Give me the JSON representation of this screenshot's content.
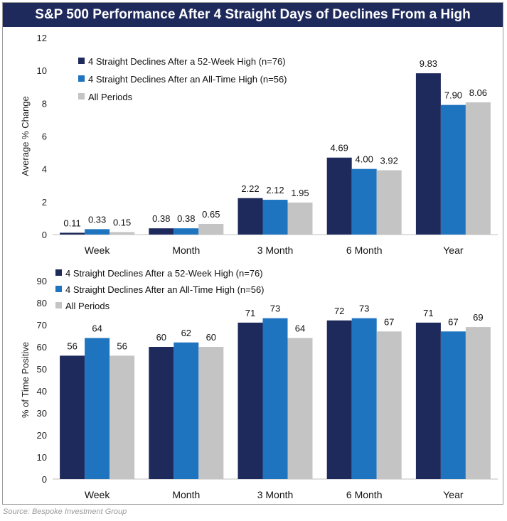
{
  "title": "S&P 500 Performance After 4 Straight Days of Declines From a High",
  "source": "Source: Bespoke Investment Group",
  "colors": {
    "series1": "#1f2a5c",
    "series2": "#1f74c0",
    "series3": "#c4c4c4",
    "title_bg": "#1f2a5c"
  },
  "chart_data": [
    {
      "type": "bar",
      "title": "Average % Change",
      "xlabel": "",
      "ylabel": "Average % Change",
      "ylim": [
        0,
        12
      ],
      "yticks": [
        0,
        2,
        4,
        6,
        8,
        10,
        12
      ],
      "categories": [
        "Week",
        "Month",
        "3 Month",
        "6 Month",
        "Year"
      ],
      "series": [
        {
          "name": "4 Straight Declines After a 52-Week High (n=76)",
          "values": [
            0.11,
            0.38,
            2.22,
            4.69,
            9.83
          ],
          "labels": [
            "0.11",
            "0.38",
            "2.22",
            "4.69",
            "9.83"
          ]
        },
        {
          "name": "4 Straight Declines After an All-Time High (n=56)",
          "values": [
            0.33,
            0.38,
            2.12,
            4.0,
            7.9
          ],
          "labels": [
            "0.33",
            "0.38",
            "2.12",
            "4.00",
            "7.90"
          ]
        },
        {
          "name": "All Periods",
          "values": [
            0.15,
            0.65,
            1.95,
            3.92,
            8.06
          ],
          "labels": [
            "0.15",
            "0.65",
            "1.95",
            "3.92",
            "8.06"
          ]
        }
      ],
      "legend": "top-left"
    },
    {
      "type": "bar",
      "title": "% of Time Positive",
      "xlabel": "",
      "ylabel": "% of Time Positive",
      "ylim": [
        0,
        90
      ],
      "yticks": [
        0,
        10,
        20,
        30,
        40,
        50,
        60,
        70,
        80,
        90
      ],
      "categories": [
        "Week",
        "Month",
        "3 Month",
        "6 Month",
        "Year"
      ],
      "series": [
        {
          "name": "4 Straight Declines After a 52-Week High (n=76)",
          "values": [
            56,
            60,
            71,
            72,
            71
          ],
          "labels": [
            "56",
            "60",
            "71",
            "72",
            "71"
          ]
        },
        {
          "name": "4 Straight Declines After an All-Time High (n=56)",
          "values": [
            64,
            62,
            73,
            73,
            67
          ],
          "labels": [
            "64",
            "62",
            "73",
            "73",
            "67"
          ]
        },
        {
          "name": "All Periods",
          "values": [
            56,
            60,
            64,
            67,
            69
          ],
          "labels": [
            "56",
            "60",
            "64",
            "67",
            "69"
          ]
        }
      ],
      "legend": "top-left"
    }
  ]
}
